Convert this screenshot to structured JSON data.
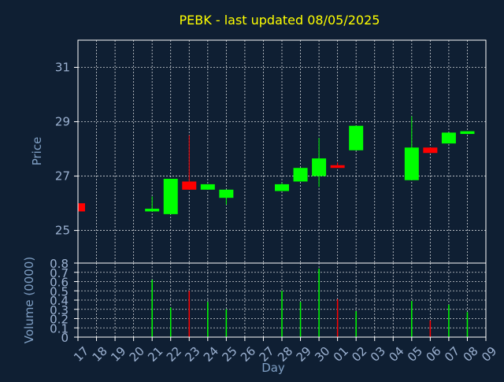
{
  "title": "PEBK - last updated 08/05/2025",
  "colors": {
    "background": "#0f1f33",
    "title": "#ffff00",
    "axis_label": "#7f9fc4",
    "tick_label": "#9cb2d2",
    "frame": "#ffffff",
    "grid": "#ffffff",
    "up": "#00ff00",
    "down": "#ff0000"
  },
  "chart_data": [
    {
      "type": "candlestick",
      "ylabel": "Price",
      "ylim": [
        23.8,
        32.0
      ],
      "yticks": [
        25,
        27,
        29,
        31
      ],
      "ytick_labels": [
        "25",
        "27",
        "29",
        "31"
      ],
      "grid": true,
      "candles": [
        {
          "x": "17",
          "open": 26.0,
          "high": 26.0,
          "low": 25.7,
          "close": 25.7
        },
        {
          "x": "21",
          "open": 25.7,
          "high": 26.25,
          "low": 25.7,
          "close": 25.8
        },
        {
          "x": "22",
          "open": 25.6,
          "high": 26.9,
          "low": 25.6,
          "close": 26.9
        },
        {
          "x": "23",
          "open": 26.8,
          "high": 28.5,
          "low": 26.5,
          "close": 26.5
        },
        {
          "x": "24",
          "open": 26.5,
          "high": 26.7,
          "low": 26.5,
          "close": 26.7
        },
        {
          "x": "25",
          "open": 26.2,
          "high": 26.5,
          "low": 25.95,
          "close": 26.5
        },
        {
          "x": "28",
          "open": 26.45,
          "high": 26.75,
          "low": 26.45,
          "close": 26.7
        },
        {
          "x": "29",
          "open": 26.8,
          "high": 27.3,
          "low": 26.8,
          "close": 27.3
        },
        {
          "x": "30",
          "open": 27.0,
          "high": 28.4,
          "low": 26.6,
          "close": 27.65
        },
        {
          "x": "01",
          "open": 27.4,
          "high": 27.5,
          "low": 27.3,
          "close": 27.3
        },
        {
          "x": "02",
          "open": 27.95,
          "high": 28.85,
          "low": 27.95,
          "close": 28.85
        },
        {
          "x": "05",
          "open": 26.85,
          "high": 29.2,
          "low": 26.85,
          "close": 28.05
        },
        {
          "x": "06",
          "open": 28.05,
          "high": 28.05,
          "low": 27.85,
          "close": 27.85
        },
        {
          "x": "07",
          "open": 28.2,
          "high": 28.6,
          "low": 28.2,
          "close": 28.6
        },
        {
          "x": "08",
          "open": 28.55,
          "high": 28.65,
          "low": 28.55,
          "close": 28.65
        }
      ]
    },
    {
      "type": "bar",
      "ylabel": "Volume (0000)",
      "xlabel": "Day",
      "ylim": [
        0,
        0.8
      ],
      "yticks": [
        0,
        0.1,
        0.2,
        0.3,
        0.4,
        0.5,
        0.6,
        0.7,
        0.8
      ],
      "ytick_labels": [
        "0",
        "0.1",
        "0.2",
        "0.3",
        "0.4",
        "0.5",
        "0.6",
        "0.7",
        "0.8"
      ],
      "grid": true,
      "categories": [
        "17",
        "18",
        "19",
        "20",
        "21",
        "22",
        "23",
        "24",
        "25",
        "26",
        "27",
        "28",
        "29",
        "30",
        "01",
        "02",
        "03",
        "04",
        "05",
        "06",
        "07",
        "08",
        "09"
      ],
      "bars": [
        {
          "x": "21",
          "value": 0.62,
          "direction": "up"
        },
        {
          "x": "22",
          "value": 0.32,
          "direction": "up"
        },
        {
          "x": "23",
          "value": 0.5,
          "direction": "down"
        },
        {
          "x": "24",
          "value": 0.38,
          "direction": "up"
        },
        {
          "x": "25",
          "value": 0.3,
          "direction": "up"
        },
        {
          "x": "28",
          "value": 0.5,
          "direction": "up"
        },
        {
          "x": "29",
          "value": 0.38,
          "direction": "up"
        },
        {
          "x": "30",
          "value": 0.74,
          "direction": "up"
        },
        {
          "x": "01",
          "value": 0.41,
          "direction": "down"
        },
        {
          "x": "02",
          "value": 0.28,
          "direction": "up"
        },
        {
          "x": "05",
          "value": 0.39,
          "direction": "up"
        },
        {
          "x": "06",
          "value": 0.18,
          "direction": "down"
        },
        {
          "x": "07",
          "value": 0.35,
          "direction": "up"
        },
        {
          "x": "08",
          "value": 0.27,
          "direction": "up"
        }
      ]
    }
  ]
}
